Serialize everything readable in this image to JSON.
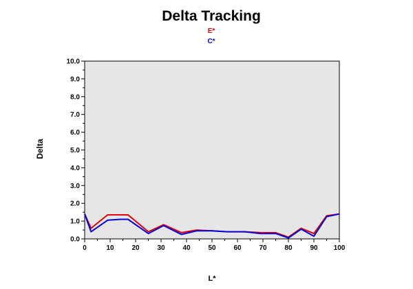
{
  "chart_data": {
    "type": "line",
    "title": "Delta Tracking",
    "xlabel": "L*",
    "ylabel": "Delta",
    "xlim": [
      0,
      100
    ],
    "ylim": [
      0,
      10
    ],
    "xticks": [
      "0",
      "10",
      "20",
      "30",
      "40",
      "50",
      "60",
      "70",
      "80",
      "90",
      "100"
    ],
    "yticks": [
      "0.0",
      "1.0",
      "2.0",
      "3.0",
      "4.0",
      "5.0",
      "6.0",
      "7.0",
      "8.0",
      "9.0",
      "10.0"
    ],
    "grid": false,
    "legend_position": "top-center",
    "plot_background": "#e6e6e6",
    "series": [
      {
        "name": "E*",
        "color": "#e00000",
        "x": [
          0,
          2.5,
          9,
          17,
          25,
          31,
          38,
          44,
          50,
          56,
          63,
          69,
          75,
          80,
          85,
          90,
          95,
          100
        ],
        "values": [
          1.4,
          0.6,
          1.35,
          1.35,
          0.4,
          0.8,
          0.35,
          0.5,
          0.45,
          0.4,
          0.4,
          0.35,
          0.35,
          0.1,
          0.6,
          0.3,
          1.3,
          1.4
        ]
      },
      {
        "name": "C*",
        "color": "#0000e0",
        "x": [
          0,
          2.5,
          9,
          14,
          17,
          25,
          31,
          38,
          44,
          50,
          56,
          63,
          69,
          75,
          80,
          85,
          90,
          95,
          100
        ],
        "values": [
          1.4,
          0.4,
          1.05,
          1.1,
          1.1,
          0.3,
          0.75,
          0.25,
          0.45,
          0.45,
          0.4,
          0.4,
          0.3,
          0.3,
          0.05,
          0.55,
          0.15,
          1.25,
          1.4
        ]
      }
    ]
  }
}
